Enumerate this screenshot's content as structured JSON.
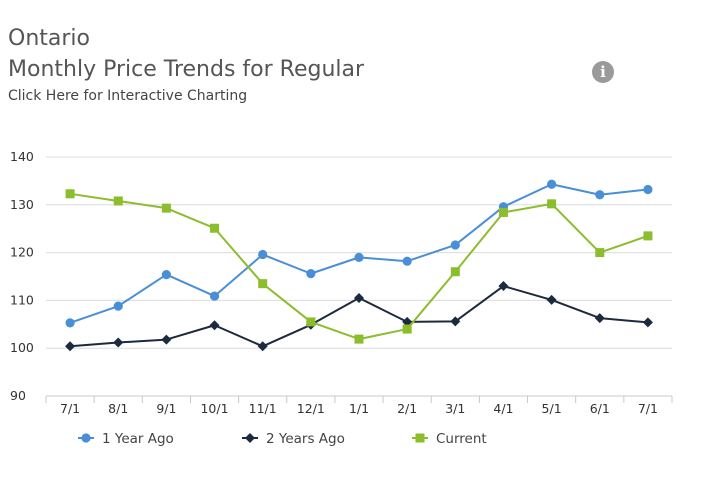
{
  "header": {
    "title_line1": "Ontario",
    "title_line2": "Monthly Price Trends for Regular",
    "link_text": "Click Here for Interactive Charting",
    "info_icon": "info-icon"
  },
  "chart_data": {
    "type": "line",
    "categories": [
      "7/1",
      "8/1",
      "9/1",
      "10/1",
      "11/1",
      "12/1",
      "1/1",
      "2/1",
      "3/1",
      "4/1",
      "5/1",
      "6/1",
      "7/1"
    ],
    "ylim": [
      90,
      140
    ],
    "yticks": [
      90,
      100,
      110,
      120,
      130,
      140
    ],
    "grid": true,
    "legend_position": "bottom",
    "series": [
      {
        "name": "1 Year Ago",
        "color": "#4a8fd6",
        "marker": "circle",
        "values": [
          105.3,
          108.8,
          115.4,
          110.9,
          119.6,
          115.6,
          119.0,
          118.2,
          121.6,
          129.6,
          134.3,
          132.1,
          133.2
        ]
      },
      {
        "name": "2 Years Ago",
        "color": "#1c2a3e",
        "marker": "diamond",
        "values": [
          100.4,
          101.2,
          101.8,
          104.8,
          100.4,
          104.9,
          110.5,
          105.5,
          105.6,
          113.0,
          110.1,
          106.3,
          105.4
        ]
      },
      {
        "name": "Current",
        "color": "#8cbd2c",
        "marker": "square",
        "values": [
          132.3,
          130.8,
          129.3,
          125.1,
          113.5,
          105.5,
          101.9,
          104.0,
          116.0,
          128.4,
          130.2,
          120.0,
          123.5
        ]
      }
    ]
  }
}
